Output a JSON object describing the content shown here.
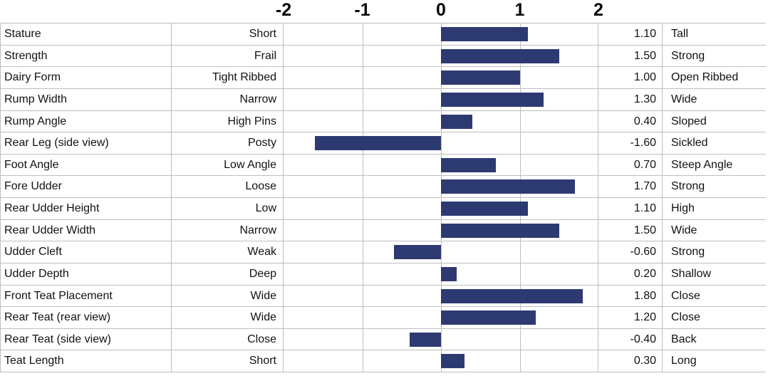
{
  "chart_data": {
    "type": "bar",
    "orientation": "horizontal",
    "title": "",
    "xlim": [
      -2,
      2
    ],
    "grid": true,
    "axis_ticks": [
      "-2",
      "-1",
      "0",
      "1",
      "2"
    ],
    "interior_gridline_values": [
      -1,
      0,
      1
    ],
    "colors": {
      "bar": "#2d3a72",
      "gridline": "#bebebe",
      "text": "#111111",
      "background": "#ffffff"
    },
    "rows": [
      {
        "trait": "Stature",
        "low": "Short",
        "value": 1.1,
        "value_label": "1.10",
        "high": "Tall"
      },
      {
        "trait": "Strength",
        "low": "Frail",
        "value": 1.5,
        "value_label": "1.50",
        "high": "Strong"
      },
      {
        "trait": "Dairy Form",
        "low": "Tight Ribbed",
        "value": 1.0,
        "value_label": "1.00",
        "high": "Open Ribbed"
      },
      {
        "trait": "Rump Width",
        "low": "Narrow",
        "value": 1.3,
        "value_label": "1.30",
        "high": "Wide"
      },
      {
        "trait": "Rump Angle",
        "low": "High Pins",
        "value": 0.4,
        "value_label": "0.40",
        "high": "Sloped"
      },
      {
        "trait": "Rear Leg (side view)",
        "low": "Posty",
        "value": -1.6,
        "value_label": "-1.60",
        "high": "Sickled"
      },
      {
        "trait": "Foot Angle",
        "low": "Low Angle",
        "value": 0.7,
        "value_label": "0.70",
        "high": "Steep Angle"
      },
      {
        "trait": "Fore Udder",
        "low": "Loose",
        "value": 1.7,
        "value_label": "1.70",
        "high": "Strong"
      },
      {
        "trait": "Rear Udder Height",
        "low": "Low",
        "value": 1.1,
        "value_label": "1.10",
        "high": "High"
      },
      {
        "trait": "Rear Udder Width",
        "low": "Narrow",
        "value": 1.5,
        "value_label": "1.50",
        "high": "Wide"
      },
      {
        "trait": "Udder Cleft",
        "low": "Weak",
        "value": -0.6,
        "value_label": "-0.60",
        "high": "Strong"
      },
      {
        "trait": "Udder Depth",
        "low": "Deep",
        "value": 0.2,
        "value_label": "0.20",
        "high": "Shallow"
      },
      {
        "trait": "Front Teat Placement",
        "low": "Wide",
        "value": 1.8,
        "value_label": "1.80",
        "high": "Close"
      },
      {
        "trait": "Rear Teat (rear view)",
        "low": "Wide",
        "value": 1.2,
        "value_label": "1.20",
        "high": "Close"
      },
      {
        "trait": "Rear Teat (side view)",
        "low": "Close",
        "value": -0.4,
        "value_label": "-0.40",
        "high": "Back"
      },
      {
        "trait": "Teat Length",
        "low": "Short",
        "value": 0.3,
        "value_label": "0.30",
        "high": "Long"
      }
    ]
  }
}
